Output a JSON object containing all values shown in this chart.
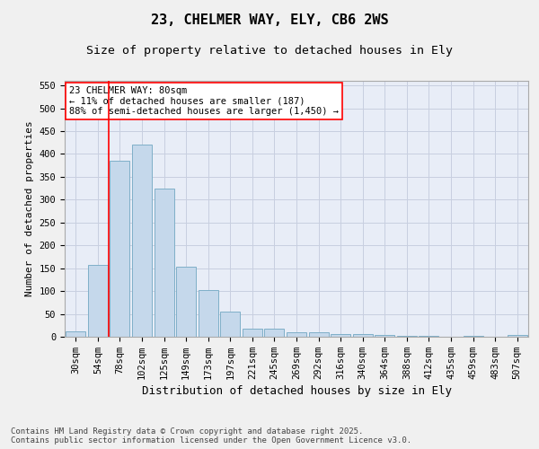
{
  "title1": "23, CHELMER WAY, ELY, CB6 2WS",
  "title2": "Size of property relative to detached houses in Ely",
  "xlabel": "Distribution of detached houses by size in Ely",
  "ylabel": "Number of detached properties",
  "categories": [
    "30sqm",
    "54sqm",
    "78sqm",
    "102sqm",
    "125sqm",
    "149sqm",
    "173sqm",
    "197sqm",
    "221sqm",
    "245sqm",
    "269sqm",
    "292sqm",
    "316sqm",
    "340sqm",
    "364sqm",
    "388sqm",
    "412sqm",
    "435sqm",
    "459sqm",
    "483sqm",
    "507sqm"
  ],
  "values": [
    12,
    157,
    385,
    420,
    325,
    153,
    102,
    55,
    18,
    17,
    10,
    10,
    5,
    5,
    3,
    1,
    2,
    0,
    1,
    0,
    3
  ],
  "bar_color": "#c5d8eb",
  "bar_edge_color": "#7fafc8",
  "vline_color": "red",
  "annotation_text": "23 CHELMER WAY: 80sqm\n← 11% of detached houses are smaller (187)\n88% of semi-detached houses are larger (1,450) →",
  "annotation_box_color": "white",
  "annotation_box_edge_color": "red",
  "ylim": [
    0,
    560
  ],
  "yticks": [
    0,
    50,
    100,
    150,
    200,
    250,
    300,
    350,
    400,
    450,
    500,
    550
  ],
  "grid_color": "#c8cfe0",
  "bg_color": "#e8edf7",
  "fig_bg_color": "#f0f0f0",
  "footer_text": "Contains HM Land Registry data © Crown copyright and database right 2025.\nContains public sector information licensed under the Open Government Licence v3.0.",
  "title1_fontsize": 11,
  "title2_fontsize": 9.5,
  "xlabel_fontsize": 9,
  "ylabel_fontsize": 8,
  "tick_fontsize": 7.5,
  "annot_fontsize": 7.5,
  "footer_fontsize": 6.5
}
